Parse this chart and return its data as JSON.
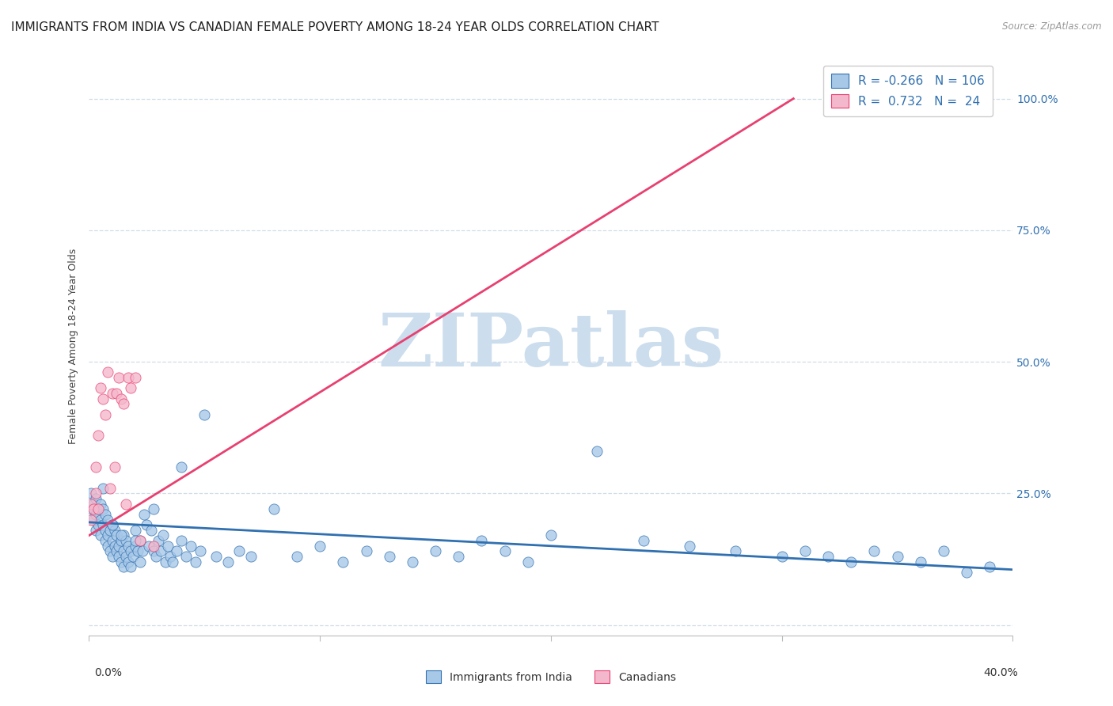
{
  "title": "IMMIGRANTS FROM INDIA VS CANADIAN FEMALE POVERTY AMONG 18-24 YEAR OLDS CORRELATION CHART",
  "source": "Source: ZipAtlas.com",
  "ylabel": "Female Poverty Among 18-24 Year Olds",
  "ytick_vals": [
    0.0,
    0.25,
    0.5,
    0.75,
    1.0
  ],
  "ytick_labels_right": [
    "",
    "25.0%",
    "50.0%",
    "75.0%",
    "100.0%"
  ],
  "xlim": [
    0.0,
    0.4
  ],
  "ylim": [
    -0.02,
    1.08
  ],
  "legend_r_blue": "-0.266",
  "legend_n_blue": "106",
  "legend_r_pink": "0.732",
  "legend_n_pink": "24",
  "legend_label_blue": "Immigrants from India",
  "legend_label_pink": "Canadians",
  "blue_color": "#a8c8e8",
  "pink_color": "#f4b8cc",
  "blue_line_color": "#3070b0",
  "pink_line_color": "#e84070",
  "watermark": "ZIPatlas",
  "watermark_color": "#ccdded",
  "title_fontsize": 11,
  "axis_label_fontsize": 9,
  "tick_fontsize": 10,
  "blue_scatter_x": [
    0.001,
    0.001,
    0.002,
    0.002,
    0.003,
    0.003,
    0.003,
    0.004,
    0.004,
    0.005,
    0.005,
    0.005,
    0.006,
    0.006,
    0.007,
    0.007,
    0.007,
    0.008,
    0.008,
    0.008,
    0.009,
    0.009,
    0.01,
    0.01,
    0.01,
    0.011,
    0.011,
    0.012,
    0.012,
    0.013,
    0.013,
    0.014,
    0.014,
    0.015,
    0.015,
    0.015,
    0.016,
    0.016,
    0.017,
    0.017,
    0.018,
    0.018,
    0.019,
    0.02,
    0.02,
    0.021,
    0.022,
    0.022,
    0.023,
    0.024,
    0.025,
    0.026,
    0.027,
    0.028,
    0.029,
    0.03,
    0.031,
    0.032,
    0.033,
    0.034,
    0.035,
    0.036,
    0.038,
    0.04,
    0.042,
    0.044,
    0.046,
    0.048,
    0.05,
    0.055,
    0.06,
    0.065,
    0.07,
    0.08,
    0.09,
    0.1,
    0.11,
    0.12,
    0.13,
    0.14,
    0.15,
    0.16,
    0.17,
    0.18,
    0.19,
    0.2,
    0.22,
    0.24,
    0.26,
    0.28,
    0.3,
    0.31,
    0.32,
    0.33,
    0.34,
    0.35,
    0.36,
    0.37,
    0.38,
    0.39,
    0.006,
    0.01,
    0.014,
    0.02,
    0.028,
    0.04
  ],
  "blue_scatter_y": [
    0.22,
    0.25,
    0.23,
    0.2,
    0.21,
    0.24,
    0.18,
    0.22,
    0.19,
    0.2,
    0.23,
    0.17,
    0.19,
    0.22,
    0.18,
    0.21,
    0.16,
    0.17,
    0.2,
    0.15,
    0.18,
    0.14,
    0.16,
    0.19,
    0.13,
    0.15,
    0.18,
    0.14,
    0.17,
    0.15,
    0.13,
    0.16,
    0.12,
    0.14,
    0.17,
    0.11,
    0.13,
    0.16,
    0.12,
    0.15,
    0.14,
    0.11,
    0.13,
    0.15,
    0.18,
    0.14,
    0.16,
    0.12,
    0.14,
    0.21,
    0.19,
    0.15,
    0.18,
    0.14,
    0.13,
    0.16,
    0.14,
    0.17,
    0.12,
    0.15,
    0.13,
    0.12,
    0.14,
    0.16,
    0.13,
    0.15,
    0.12,
    0.14,
    0.4,
    0.13,
    0.12,
    0.14,
    0.13,
    0.22,
    0.13,
    0.15,
    0.12,
    0.14,
    0.13,
    0.12,
    0.14,
    0.13,
    0.16,
    0.14,
    0.12,
    0.17,
    0.33,
    0.16,
    0.15,
    0.14,
    0.13,
    0.14,
    0.13,
    0.12,
    0.14,
    0.13,
    0.12,
    0.14,
    0.1,
    0.11,
    0.26,
    0.19,
    0.17,
    0.16,
    0.22,
    0.3
  ],
  "pink_scatter_x": [
    0.001,
    0.001,
    0.002,
    0.003,
    0.003,
    0.004,
    0.004,
    0.005,
    0.006,
    0.007,
    0.008,
    0.009,
    0.01,
    0.011,
    0.012,
    0.013,
    0.014,
    0.015,
    0.016,
    0.017,
    0.018,
    0.02,
    0.022,
    0.028
  ],
  "pink_scatter_y": [
    0.23,
    0.2,
    0.22,
    0.3,
    0.25,
    0.36,
    0.22,
    0.45,
    0.43,
    0.4,
    0.48,
    0.26,
    0.44,
    0.3,
    0.44,
    0.47,
    0.43,
    0.42,
    0.23,
    0.47,
    0.45,
    0.47,
    0.16,
    0.15
  ],
  "blue_trend_x": [
    0.0,
    0.4
  ],
  "blue_trend_y": [
    0.195,
    0.105
  ],
  "pink_trend_x": [
    0.0,
    0.305
  ],
  "pink_trend_y": [
    0.17,
    1.0
  ],
  "grid_color": "#d0dde8",
  "grid_linestyle": "--",
  "spine_color": "#bbbbbb"
}
